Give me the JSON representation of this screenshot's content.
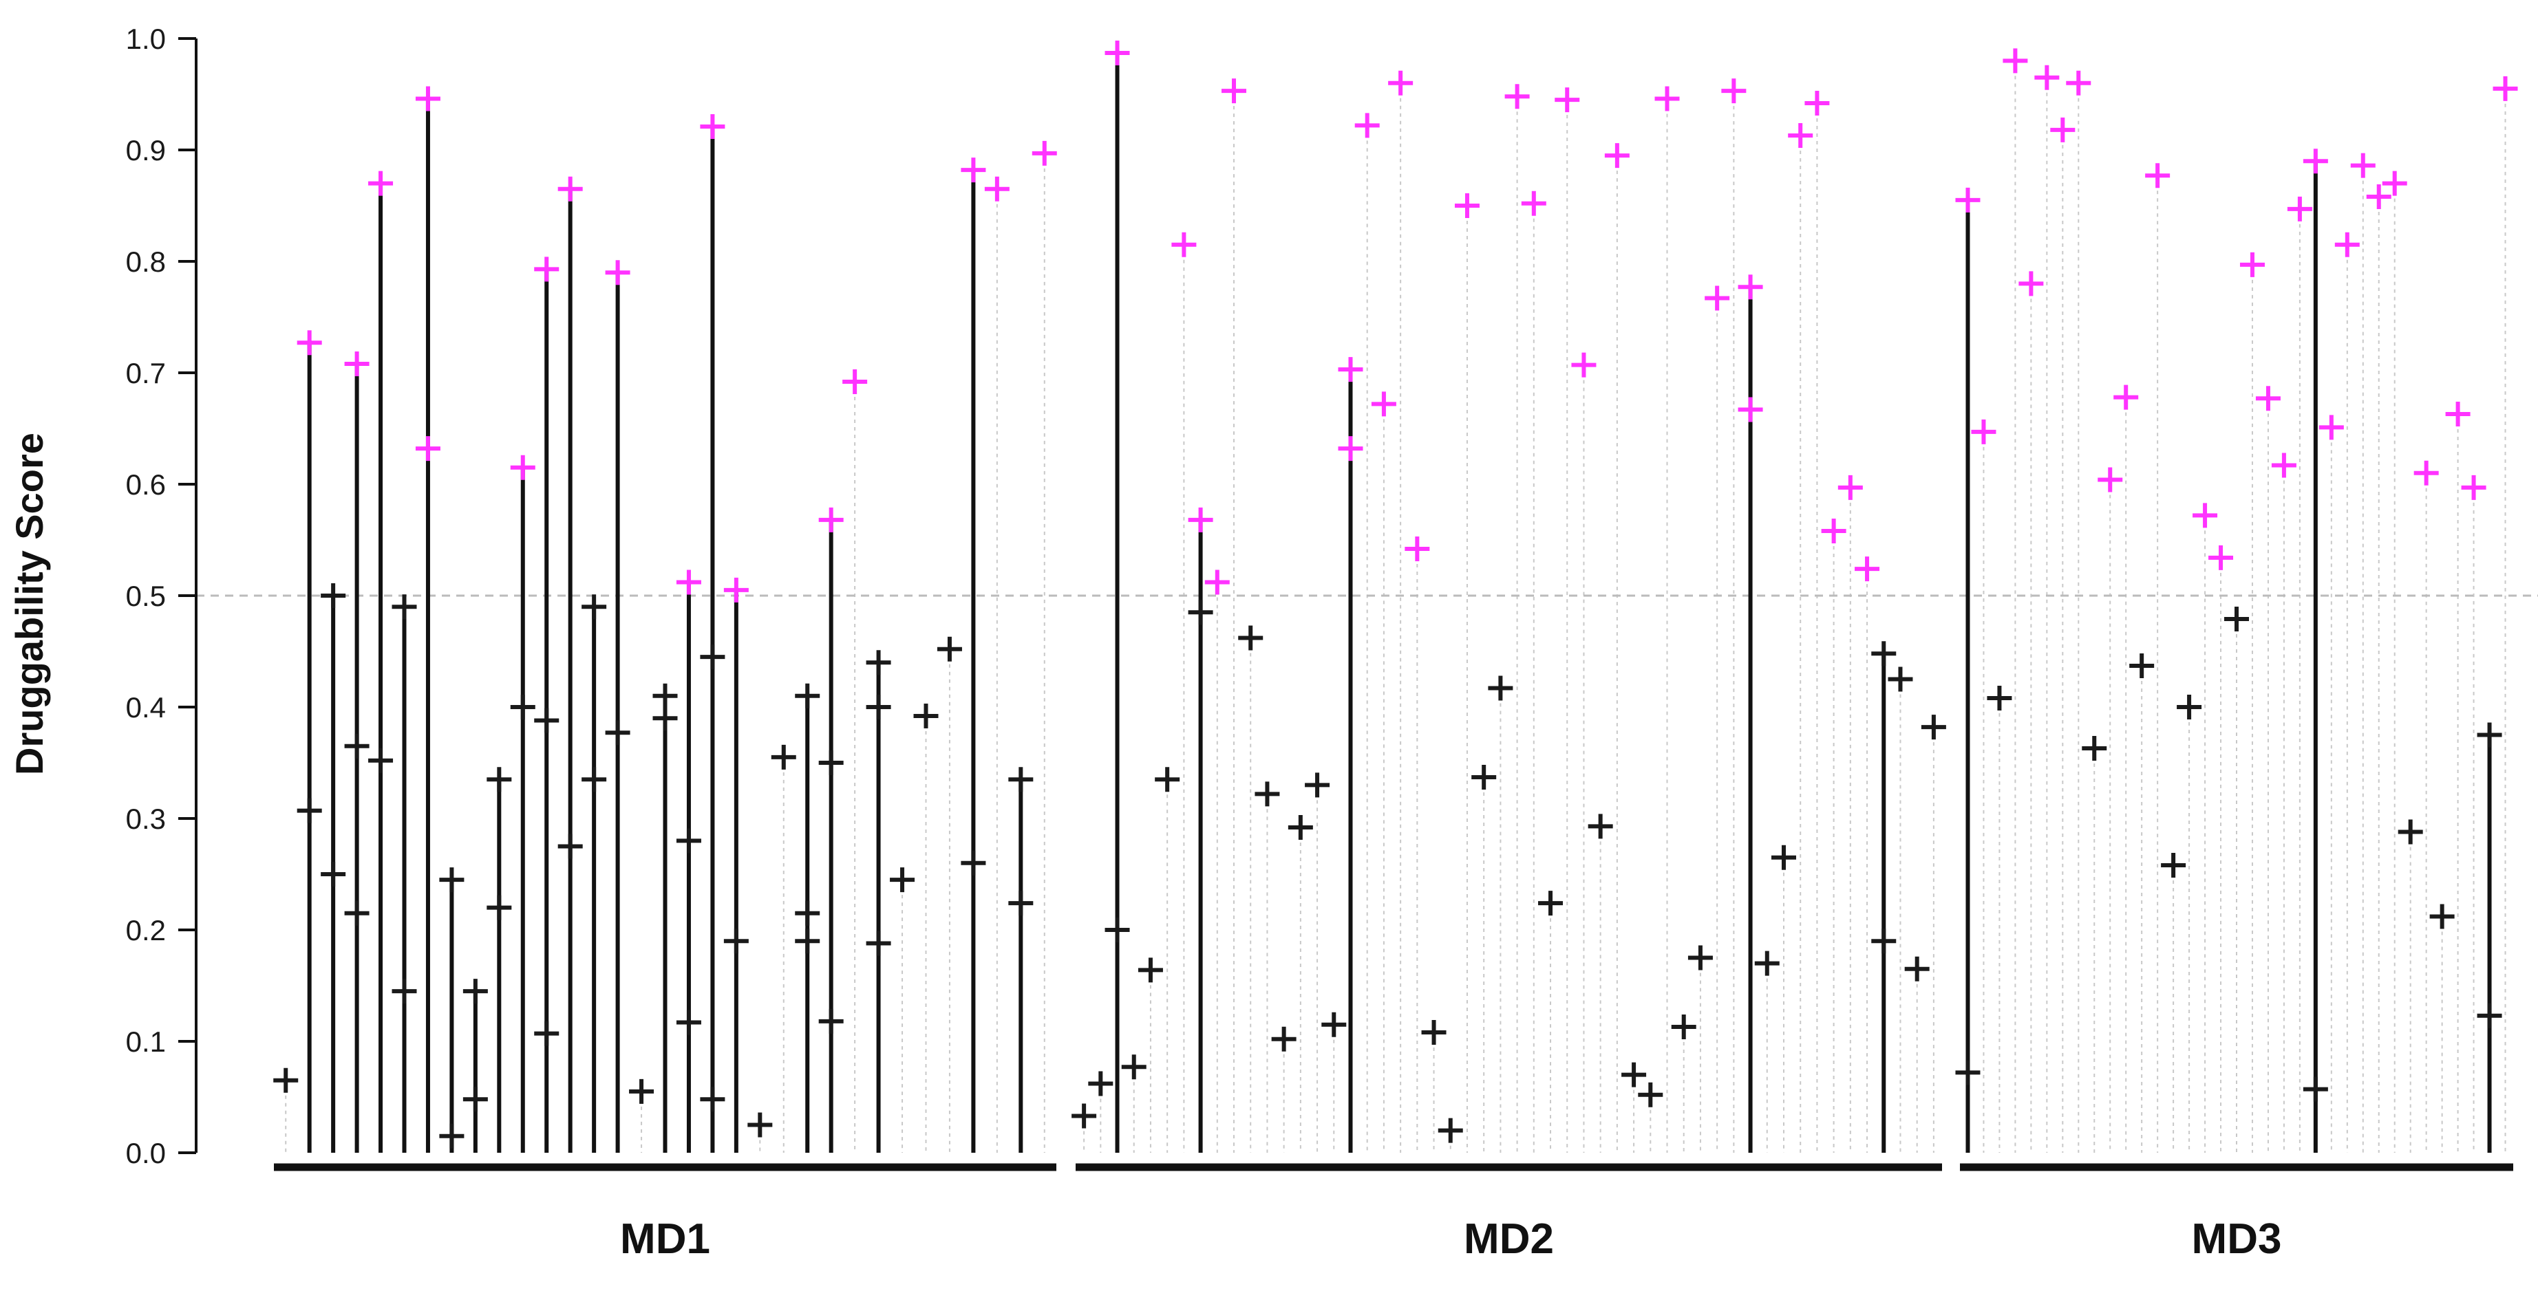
{
  "chart_data": {
    "type": "scatter",
    "title": "",
    "xlabel": "",
    "ylabel": "Druggability Score",
    "ylim": [
      0,
      1
    ],
    "y_ticks": [
      "0.0",
      "0.1",
      "0.2",
      "0.3",
      "0.4",
      "0.5",
      "0.6",
      "0.7",
      "0.8",
      "0.9",
      "1.0"
    ],
    "threshold": 0.5,
    "threshold_style": "dashed gray",
    "x_grid": "dotted vertical line per pocket",
    "colors": {
      "below_threshold": "#1a1a1a",
      "above_threshold": "#ff33ff",
      "range_line": "#111111",
      "grid": "#c8c8c8",
      "threshold_line": "#bbbbbb",
      "axis": "#111111"
    },
    "groups": [
      {
        "label": "MD1",
        "pockets": [
          [
            0.065
          ],
          [
            0.727,
            0.307
          ],
          [
            0.5,
            0.25
          ],
          [
            0.365,
            0.215,
            0.708
          ],
          [
            0.352,
            0.87
          ],
          [
            0.145,
            0.49
          ],
          [
            0.946,
            0.632
          ],
          [
            0.245,
            0.015
          ],
          [
            0.145,
            0.048
          ],
          [
            0.335,
            0.22
          ],
          [
            0.4,
            0.615
          ],
          [
            0.388,
            0.107,
            0.793
          ],
          [
            0.865,
            0.275
          ],
          [
            0.49,
            0.335
          ],
          [
            0.79,
            0.377
          ],
          [
            0.055
          ],
          [
            0.41,
            0.39
          ],
          [
            0.28,
            0.117,
            0.512
          ],
          [
            0.445,
            0.048,
            0.921
          ],
          [
            0.505,
            0.19
          ],
          [
            0.025
          ],
          [
            0.355
          ],
          [
            0.215,
            0.41,
            0.19
          ],
          [
            0.568,
            0.118,
            0.35
          ],
          [
            0.692
          ],
          [
            0.4,
            0.188,
            0.44
          ],
          [
            0.245
          ],
          [
            0.392
          ],
          [
            0.452
          ],
          [
            0.882,
            0.26
          ],
          [
            0.865
          ],
          [
            0.335,
            0.224
          ],
          [
            0.897
          ]
        ]
      },
      {
        "label": "MD2",
        "pockets": [
          [
            0.033
          ],
          [
            0.062
          ],
          [
            0.987,
            0.2
          ],
          [
            0.077
          ],
          [
            0.164
          ],
          [
            0.335
          ],
          [
            0.815
          ],
          [
            0.568,
            0.485
          ],
          [
            0.512
          ],
          [
            0.953
          ],
          [
            0.462
          ],
          [
            0.322
          ],
          [
            0.102
          ],
          [
            0.292
          ],
          [
            0.33
          ],
          [
            0.115
          ],
          [
            0.703,
            0.632
          ],
          [
            0.922
          ],
          [
            0.672
          ],
          [
            0.96
          ],
          [
            0.542
          ],
          [
            0.108
          ],
          [
            0.02
          ],
          [
            0.85
          ],
          [
            0.337
          ],
          [
            0.417
          ],
          [
            0.948
          ],
          [
            0.852
          ],
          [
            0.224
          ],
          [
            0.945
          ],
          [
            0.707
          ],
          [
            0.293
          ],
          [
            0.895
          ],
          [
            0.07
          ],
          [
            0.052
          ],
          [
            0.946
          ],
          [
            0.113
          ],
          [
            0.175
          ],
          [
            0.767
          ],
          [
            0.953
          ],
          [
            0.777,
            0.667
          ],
          [
            0.17
          ],
          [
            0.265
          ],
          [
            0.913
          ],
          [
            0.942
          ],
          [
            0.558
          ],
          [
            0.597
          ],
          [
            0.524
          ],
          [
            0.448,
            0.19
          ],
          [
            0.425
          ],
          [
            0.165
          ],
          [
            0.382
          ]
        ]
      },
      {
        "label": "MD3",
        "pockets": [
          [
            0.855,
            0.072
          ],
          [
            0.647
          ],
          [
            0.408
          ],
          [
            0.98
          ],
          [
            0.78
          ],
          [
            0.965
          ],
          [
            0.918
          ],
          [
            0.96
          ],
          [
            0.363
          ],
          [
            0.604
          ],
          [
            0.678
          ],
          [
            0.437
          ],
          [
            0.877
          ],
          [
            0.258
          ],
          [
            0.4
          ],
          [
            0.572
          ],
          [
            0.534
          ],
          [
            0.479
          ],
          [
            0.797
          ],
          [
            0.677
          ],
          [
            0.617
          ],
          [
            0.847
          ],
          [
            0.89,
            0.057
          ],
          [
            0.651
          ],
          [
            0.815
          ],
          [
            0.886
          ],
          [
            0.858
          ],
          [
            0.87
          ],
          [
            0.288
          ],
          [
            0.61
          ],
          [
            0.212
          ],
          [
            0.663
          ],
          [
            0.597
          ],
          [
            0.375,
            0.123
          ],
          [
            0.955
          ]
        ]
      }
    ]
  }
}
